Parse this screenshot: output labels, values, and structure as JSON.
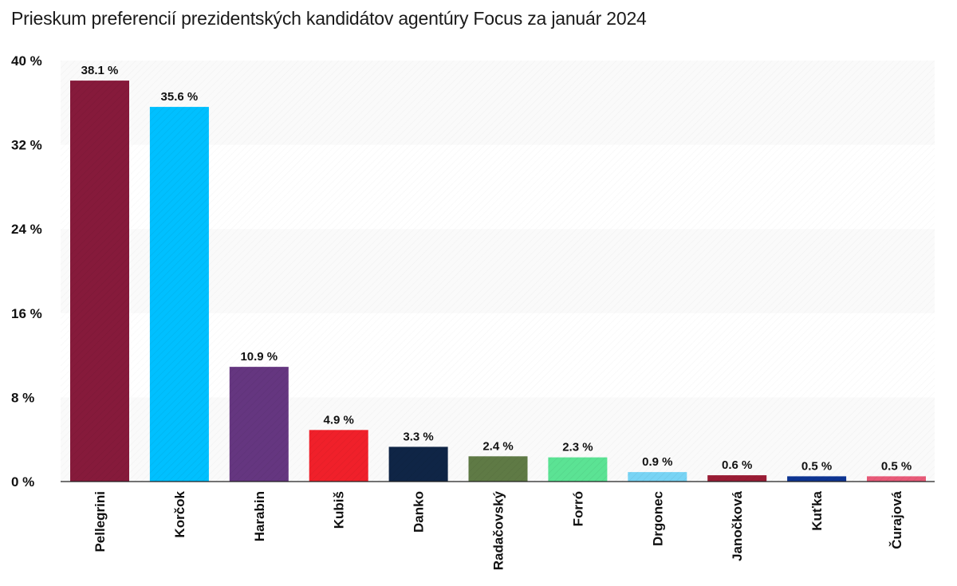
{
  "chart_data": {
    "type": "bar",
    "title": "Prieskum preferencií prezidentských kandidátov agentúry Focus za január 2024",
    "xlabel": "",
    "ylabel": "",
    "ylim": [
      0,
      40
    ],
    "yticks": [
      0,
      8,
      16,
      24,
      32,
      40
    ],
    "ytick_labels": [
      "0 %",
      "8 %",
      "16 %",
      "24 %",
      "32 %",
      "40 %"
    ],
    "grid": false,
    "categories": [
      "Pellegrini",
      "Korčok",
      "Harabin",
      "Kubiš",
      "Danko",
      "Radačovský",
      "Forró",
      "Drgonec",
      "Janočková",
      "Kuťka",
      "Čurajová"
    ],
    "values": [
      38.1,
      35.6,
      10.9,
      4.9,
      3.3,
      2.4,
      2.3,
      0.9,
      0.6,
      0.5,
      0.5
    ],
    "value_labels": [
      "38.1 %",
      "35.6 %",
      "10.9 %",
      "4.9 %",
      "3.3 %",
      "2.4 %",
      "2.3 %",
      "0.9 %",
      "0.6 %",
      "0.5 %",
      "0.5 %"
    ],
    "colors": [
      "#861a3b",
      "#00c0ff",
      "#653680",
      "#f0202a",
      "#0f2546",
      "#5f7a45",
      "#5be394",
      "#78d4f5",
      "#9a1c35",
      "#0d3492",
      "#e85a78"
    ]
  }
}
